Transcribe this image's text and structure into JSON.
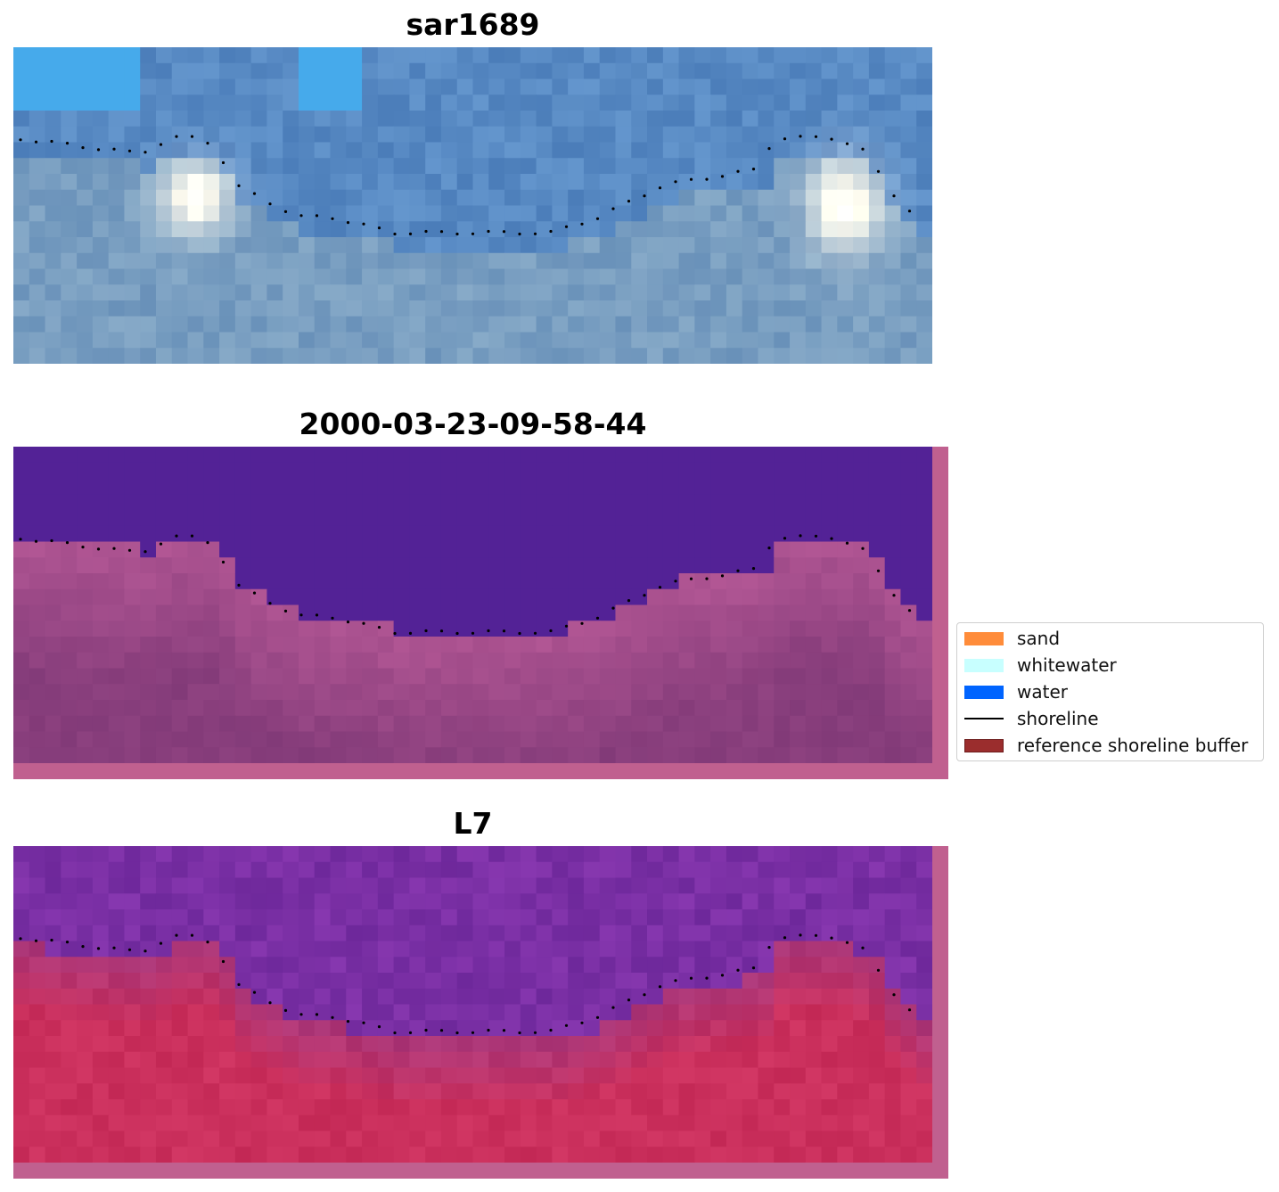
{
  "panels": [
    {
      "title": "sar1689",
      "image": "rgb-satellite-composite"
    },
    {
      "title": "2000-03-23-09-58-44",
      "image": "classified-overlay"
    },
    {
      "title": "L7",
      "image": "index-heatmap"
    }
  ],
  "legend": {
    "items": [
      {
        "label": "sand",
        "color": "#ff8c3a",
        "kind": "patch"
      },
      {
        "label": "whitewater",
        "color": "#c8ffff",
        "kind": "patch"
      },
      {
        "label": "water",
        "color": "#0064ff",
        "kind": "patch"
      },
      {
        "label": "shoreline",
        "color": "#000000",
        "kind": "line"
      },
      {
        "label": "reference shoreline buffer",
        "color": "#9b2d2d",
        "kind": "patch"
      }
    ]
  },
  "colors": {
    "water_class": "#532296",
    "buffer_overlay": "#c0608f",
    "shoreline": "#000000"
  }
}
